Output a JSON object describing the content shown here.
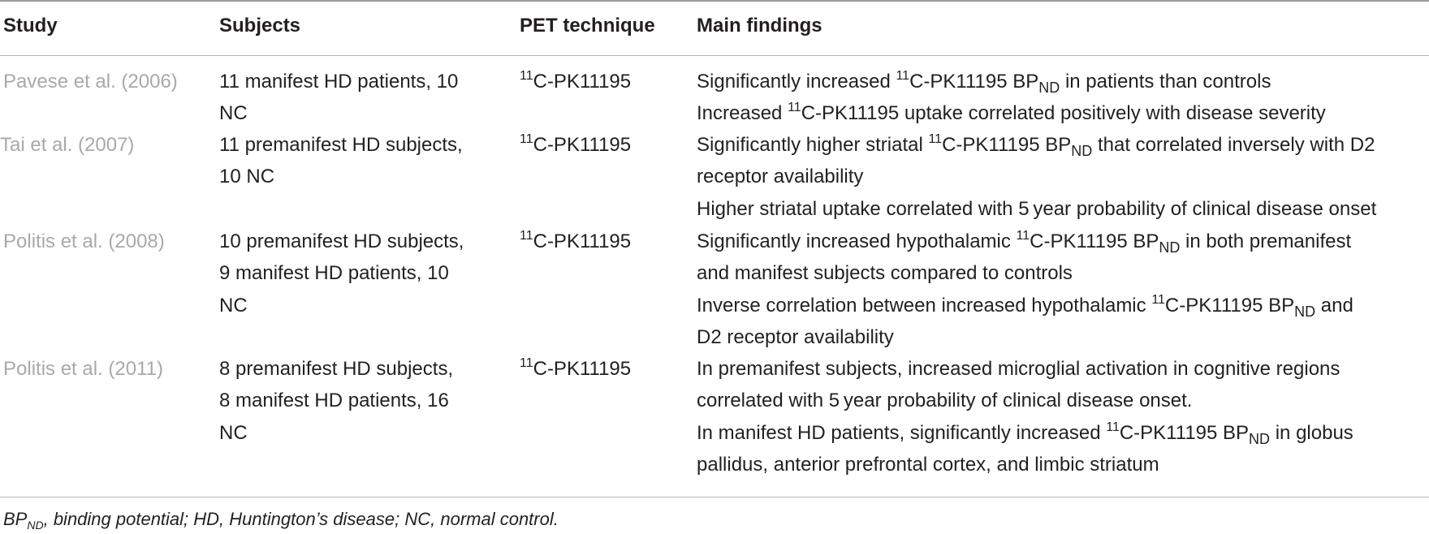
{
  "headers": {
    "study": "Study",
    "subjects": "Subjects",
    "pet": "PET technique",
    "findings": "Main findings"
  },
  "common": {
    "sup11": "11",
    "tracer": "C-PK11195",
    "bp": "BP",
    "nd": "ND"
  },
  "rows": [
    {
      "study": "Pavese et al. (2006)",
      "subjects": [
        "11 manifest HD patients, 10",
        "NC"
      ],
      "f1_a": "Significantly increased ",
      "f1_b": " in patients than controls",
      "f2_a": "Increased ",
      "f2_b": " uptake correlated positively with disease severity"
    },
    {
      "study": "Tai et al. (2007)",
      "subjects": [
        "11 premanifest HD subjects,",
        "10 NC"
      ],
      "f1_a": "Significantly higher striatal ",
      "f1_b": " that correlated inversely with D2",
      "f1_c": "receptor availability",
      "f2": "Higher striatal uptake correlated with 5 year probability of clinical disease onset"
    },
    {
      "study": "Politis et al. (2008)",
      "subjects": [
        "10 premanifest HD subjects,",
        "9 manifest HD patients, 10",
        "NC"
      ],
      "f1_a": "Significantly increased hypothalamic ",
      "f1_b": " in both premanifest",
      "f1_c": "and manifest subjects compared to controls",
      "f2_a": "Inverse correlation between increased hypothalamic ",
      "f2_b": " and",
      "f2_c": "D2 receptor availability"
    },
    {
      "study": "Politis et al. (2011)",
      "subjects": [
        "8 premanifest HD subjects,",
        "8 manifest HD patients, 16",
        "NC"
      ],
      "f1_a": "In premanifest subjects, increased microglial activation in cognitive regions",
      "f1_b": "correlated with 5 year probability of clinical disease onset.",
      "f2_a": "In manifest HD patients, significantly increased ",
      "f2_b": " in globus",
      "f2_c": "pallidus, anterior prefrontal cortex, and limbic striatum"
    }
  ],
  "footnote": {
    "bp": "BP",
    "nd": "ND",
    "text": ", binding potential; HD, Huntington’s disease; NC, normal control."
  }
}
